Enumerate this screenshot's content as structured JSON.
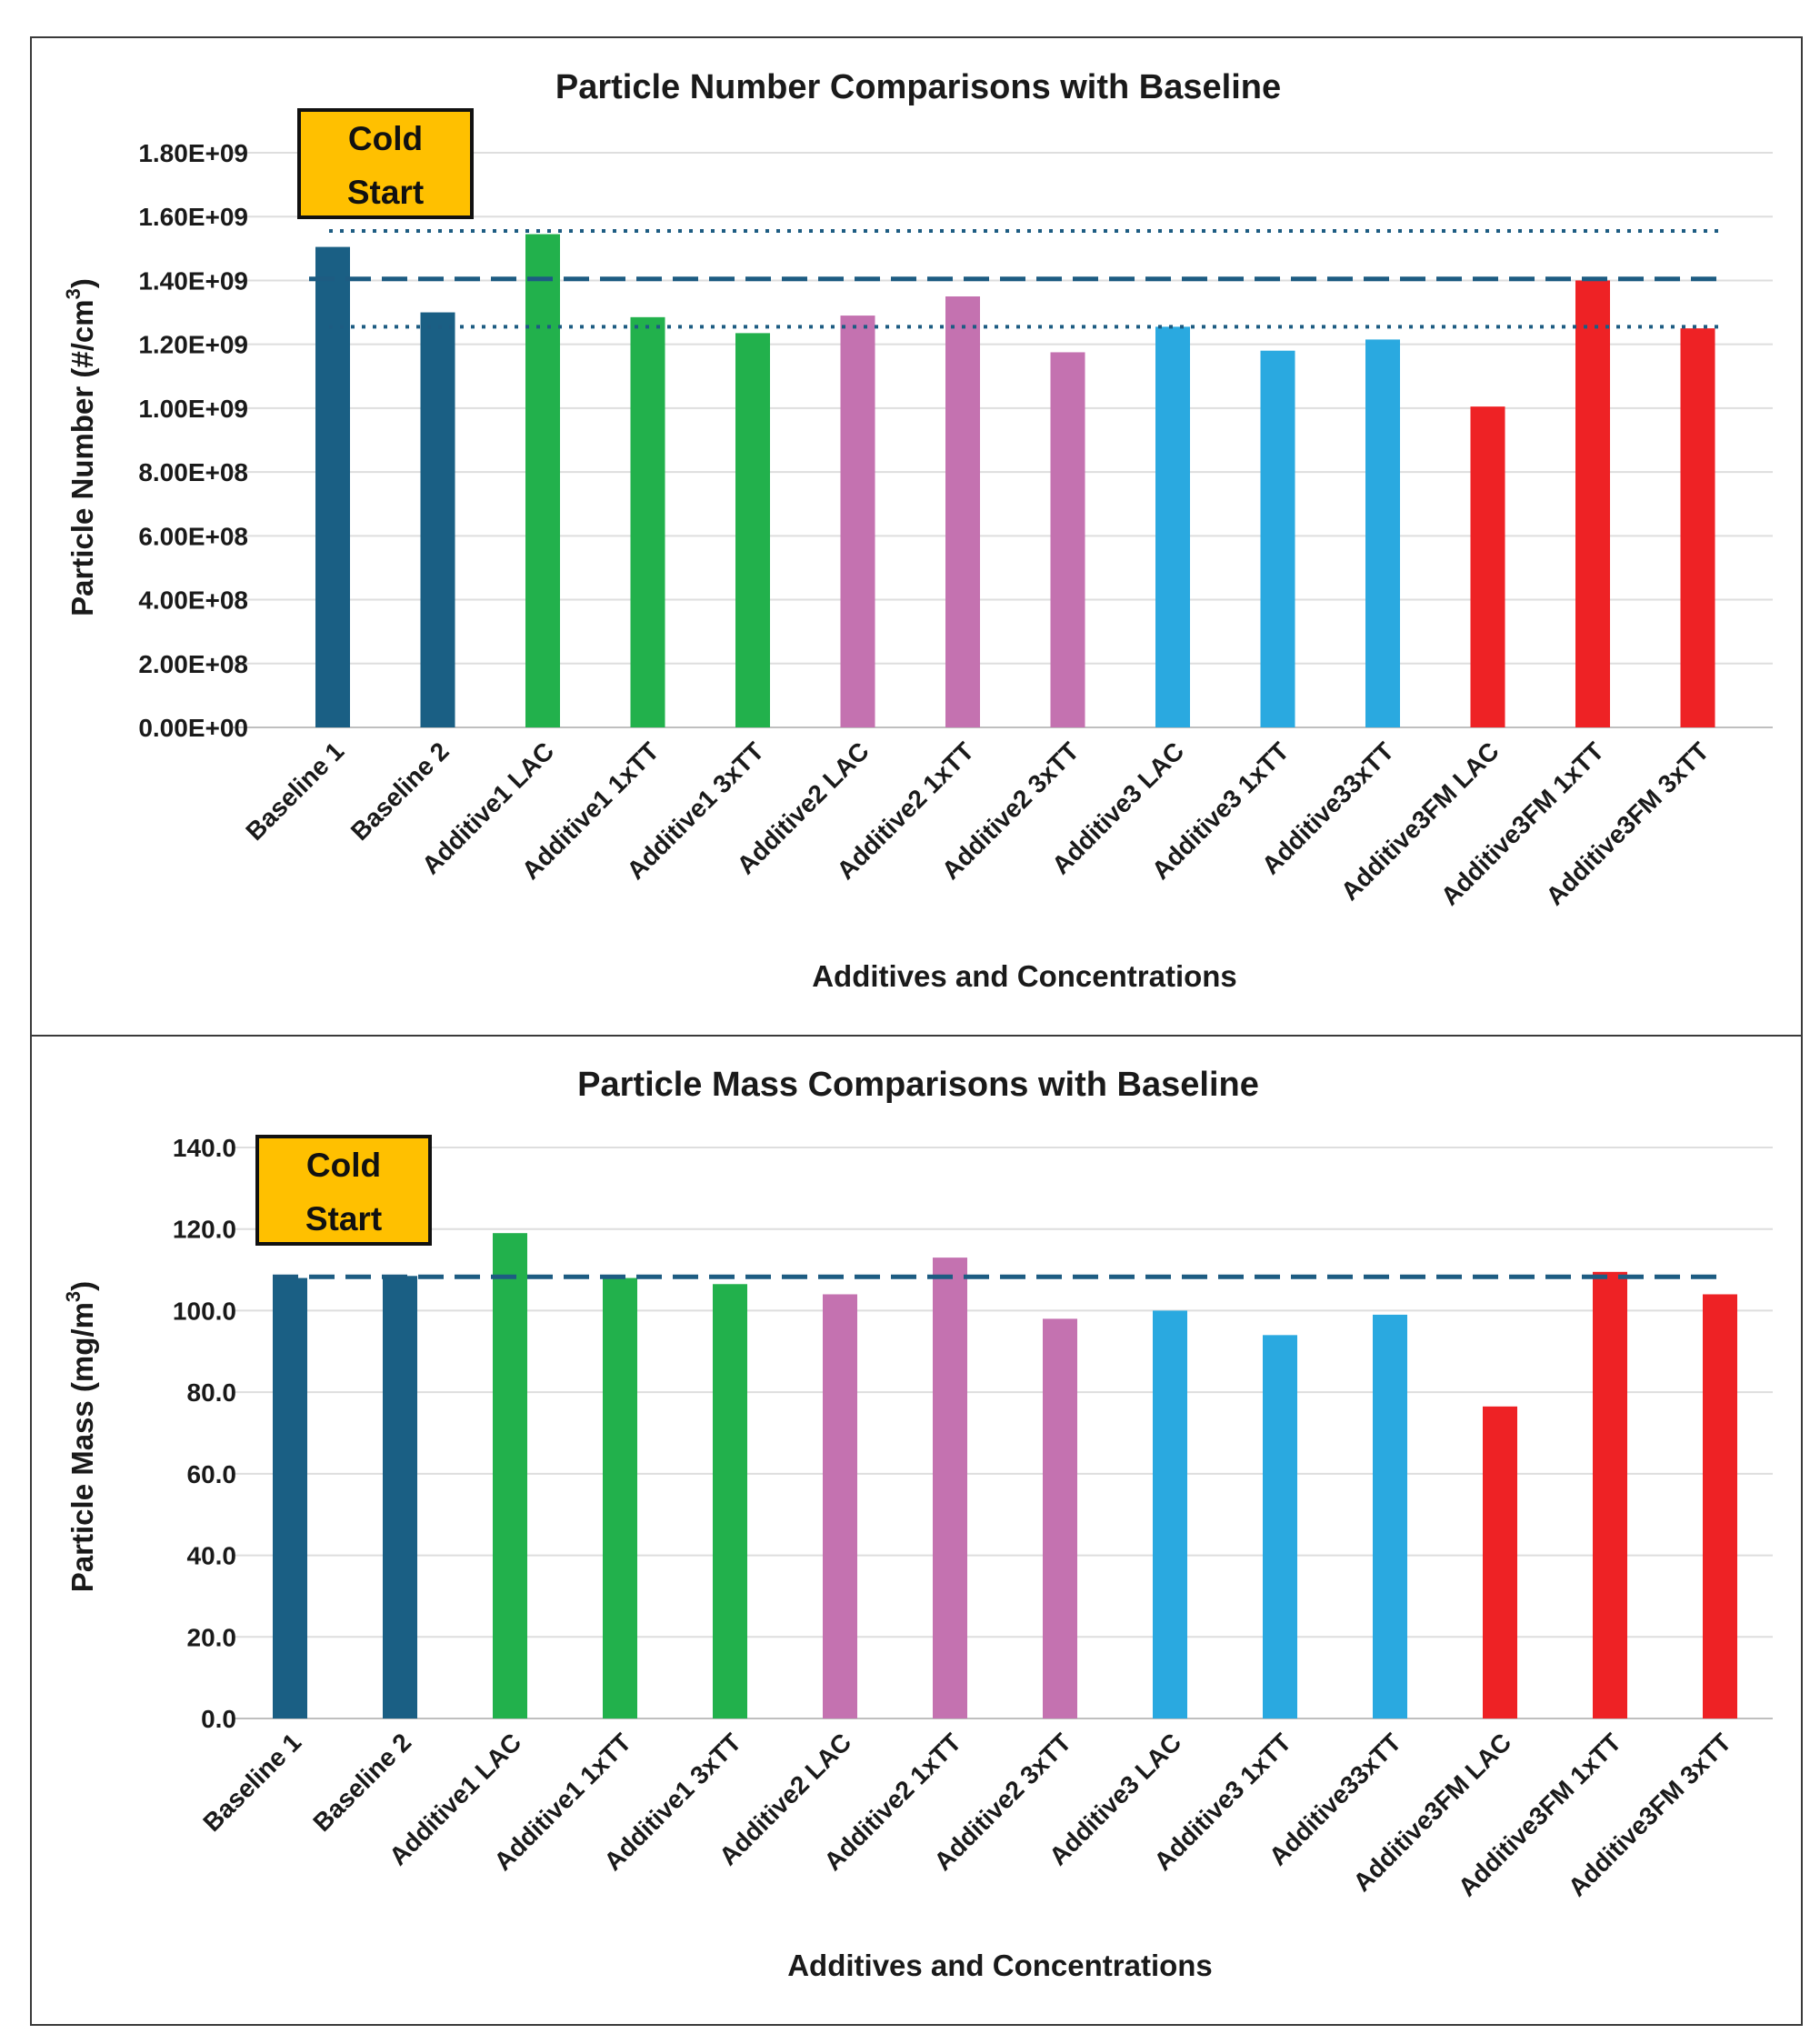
{
  "chart_data": [
    {
      "type": "bar",
      "title": "Particle Number Comparisons with Baseline",
      "xlabel": "Additives and Concentrations",
      "ylabel_main": "Particle Number (#/cm",
      "ylabel_sup": "3",
      "ylabel_end": ")",
      "ylim": [
        0,
        1800000000
      ],
      "tick_labels": [
        "0.00E+00",
        "2.00E+08",
        "4.00E+08",
        "6.00E+08",
        "8.00E+08",
        "1.00E+09",
        "1.20E+09",
        "1.40E+09",
        "1.60E+09",
        "1.80E+09"
      ],
      "categories": [
        "Baseline 1",
        "Baseline 2",
        "Additive1 LAC",
        "Additive1 1xTT",
        "Additive1 3xTT",
        "Additive2 LAC",
        "Additive2 1xTT",
        "Additive2 3xTT",
        "Additive3 LAC",
        "Additive3 1xTT",
        "Additive33xTT",
        "Additive3FM LAC",
        "Additive3FM 1xTT",
        "Additive3FM 3xTT"
      ],
      "values": [
        1505000000,
        1300000000,
        1545000000,
        1285000000,
        1235000000,
        1290000000,
        1350000000,
        1175000000,
        1255000000,
        1180000000,
        1215000000,
        1005000000,
        1400000000,
        1250000000
      ],
      "bar_colors": [
        "#1a5f84",
        "#1a5f84",
        "#22b14c",
        "#22b14c",
        "#22b14c",
        "#c472b0",
        "#c472b0",
        "#c472b0",
        "#2aa9e0",
        "#2aa9e0",
        "#2aa9e0",
        "#ee2225",
        "#ee2225",
        "#ee2225"
      ],
      "reference_lines": [
        {
          "name": "baseline-mean",
          "value": 1405000000,
          "style": "dashed"
        },
        {
          "name": "upper-bound",
          "value": 1555000000,
          "style": "dotted"
        },
        {
          "name": "lower-bound",
          "value": 1255000000,
          "style": "dotted"
        }
      ],
      "annotation": {
        "line1": "Cold",
        "line2": "Start"
      },
      "grid": true
    },
    {
      "type": "bar",
      "title": "Particle Mass Comparisons with Baseline",
      "xlabel": "Additives and Concentrations",
      "ylabel_main": "Particle Mass (mg/m",
      "ylabel_sup": "3",
      "ylabel_end": ")",
      "ylim": [
        0,
        140
      ],
      "tick_labels": [
        "0.0",
        "20.0",
        "40.0",
        "60.0",
        "80.0",
        "100.0",
        "120.0",
        "140.0"
      ],
      "categories": [
        "Baseline 1",
        "Baseline 2",
        "Additive1 LAC",
        "Additive1 1xTT",
        "Additive1 3xTT",
        "Additive2 LAC",
        "Additive2 1xTT",
        "Additive2 3xTT",
        "Additive3 LAC",
        "Additive3 1xTT",
        "Additive33xTT",
        "Additive3FM LAC",
        "Additive3FM 1xTT",
        "Additive3FM 3xTT"
      ],
      "values": [
        108,
        108.5,
        119,
        108,
        106.5,
        104,
        113,
        98,
        100,
        94,
        99,
        76.5,
        109.5,
        104
      ],
      "bar_colors": [
        "#1a5f84",
        "#1a5f84",
        "#22b14c",
        "#22b14c",
        "#22b14c",
        "#c472b0",
        "#c472b0",
        "#c472b0",
        "#2aa9e0",
        "#2aa9e0",
        "#2aa9e0",
        "#ee2225",
        "#ee2225",
        "#ee2225"
      ],
      "reference_lines": [
        {
          "name": "baseline-mean",
          "value": 108.3,
          "style": "dashed"
        }
      ],
      "annotation": {
        "line1": "Cold",
        "line2": "Start"
      },
      "grid": true
    }
  ]
}
